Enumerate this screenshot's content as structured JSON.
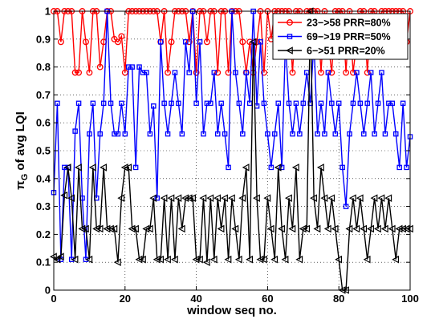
{
  "chart_data": {
    "type": "line",
    "title": "",
    "xlabel": "window seq no.",
    "ylabel_main": "π",
    "ylabel_sub": "G",
    "ylabel_rest": " of avg LQI",
    "xlim": [
      0,
      100
    ],
    "ylim": [
      0,
      1
    ],
    "xticks": [
      0,
      20,
      40,
      60,
      80,
      100
    ],
    "yticks": [
      0,
      0.1,
      0.2,
      0.3,
      0.4,
      0.5,
      0.6,
      0.7,
      0.8,
      0.9,
      1
    ],
    "xtick_labels": [
      "0",
      "20",
      "40",
      "60",
      "80",
      "100"
    ],
    "ytick_labels": [
      "0",
      "0.1",
      "0.2",
      "0.3",
      "0.4",
      "0.5",
      "0.6",
      "0.7",
      "0.8",
      "0.9",
      "1"
    ],
    "grid": true,
    "legend_position": "top-right",
    "x": [
      0,
      1,
      2,
      3,
      4,
      5,
      6,
      7,
      8,
      9,
      10,
      11,
      12,
      13,
      14,
      15,
      16,
      17,
      18,
      19,
      20,
      21,
      22,
      23,
      24,
      25,
      26,
      27,
      28,
      29,
      30,
      31,
      32,
      33,
      34,
      35,
      36,
      37,
      38,
      39,
      40,
      41,
      42,
      43,
      44,
      45,
      46,
      47,
      48,
      49,
      50,
      51,
      52,
      53,
      54,
      55,
      56,
      57,
      58,
      59,
      60,
      61,
      62,
      63,
      64,
      65,
      66,
      67,
      68,
      69,
      70,
      71,
      72,
      73,
      74,
      75,
      76,
      77,
      78,
      79,
      80,
      81,
      82,
      83,
      84,
      85,
      86,
      87,
      88,
      89,
      90,
      91,
      92,
      93,
      94,
      95,
      96,
      97,
      98,
      99,
      100
    ],
    "series": [
      {
        "name": "23−>58 PRR=80%",
        "color": "#ff0000",
        "marker": "circle",
        "values": [
          1,
          1,
          0.89,
          1,
          1,
          1,
          0.78,
          0.78,
          1,
          0.89,
          0.78,
          1,
          1,
          0.8,
          0.89,
          1,
          1,
          0.9,
          0.89,
          0.91,
          0.78,
          1,
          1,
          1,
          1,
          1,
          1,
          1,
          1,
          1,
          0.89,
          1,
          0.78,
          0.89,
          1,
          1,
          1,
          1,
          0.89,
          1,
          0.78,
          1,
          1,
          0.89,
          1,
          1,
          0.78,
          1,
          1,
          0.78,
          1,
          1,
          1,
          0.89,
          0.78,
          0.89,
          0.78,
          0.89,
          1,
          0.78,
          1,
          0.9,
          1,
          1,
          1,
          1,
          1,
          0.78,
          1,
          1,
          0.89,
          1,
          1,
          1,
          1,
          0.78,
          1,
          0.89,
          0.78,
          1,
          1,
          1,
          0.78,
          1,
          0.78,
          0.89,
          1,
          1,
          0.78,
          1,
          1,
          0.89,
          1,
          1,
          1,
          1,
          1,
          1,
          1,
          0.89,
          1
        ]
      },
      {
        "name": "69−>19 PRR=50%",
        "color": "#0000ff",
        "marker": "square",
        "values": [
          0.35,
          0.67,
          0.11,
          0.44,
          0.44,
          0.11,
          0.57,
          0.67,
          0.33,
          0.11,
          0.56,
          0.67,
          0.33,
          0.56,
          0.67,
          1,
          0.67,
          0.56,
          0.56,
          0.67,
          0.56,
          0.8,
          0.8,
          0.44,
          0.8,
          0.78,
          0.78,
          0.56,
          0.66,
          0.33,
          0.89,
          0.67,
          0.56,
          0.67,
          0.78,
          0.67,
          0.56,
          0.89,
          0.78,
          1,
          0.67,
          0.89,
          0.56,
          0.67,
          0.67,
          0.78,
          0.56,
          0.67,
          0.56,
          0.44,
          1,
          0.78,
          0.67,
          0.56,
          0.78,
          0.67,
          1,
          0.66,
          0.89,
          0.67,
          0.56,
          0.44,
          0.56,
          0.67,
          0.44,
          0.89,
          0.67,
          0.56,
          0.67,
          0.56,
          0.67,
          0.78,
          0.67,
          0.89,
          0.56,
          0.67,
          0.56,
          0.78,
          0.67,
          0.56,
          0.67,
          0.44,
          0.3,
          0.56,
          0.67,
          0.78,
          0.67,
          0.56,
          0.67,
          0.78,
          0.56,
          0.67,
          0.78,
          0.56,
          0.67,
          0.67,
          0.56,
          0.44,
          0.67,
          0.44,
          0.55
        ]
      },
      {
        "name": "6−>51 PRR=20%",
        "color": "#000000",
        "marker": "triangle-left",
        "values": [
          0.12,
          0.11,
          0.12,
          0.34,
          0.44,
          0.33,
          0.11,
          0.44,
          0.22,
          0.22,
          0.11,
          0.44,
          0.22,
          0.22,
          0.44,
          0.22,
          0.22,
          0.22,
          0.1,
          0.33,
          0.44,
          0.44,
          0.22,
          0.22,
          0.11,
          0.11,
          0.22,
          0.22,
          0.33,
          0.11,
          0.11,
          0.33,
          0.11,
          0.33,
          0.11,
          0.33,
          0.22,
          0.33,
          0.33,
          0.33,
          0.11,
          0.11,
          0.33,
          0.1,
          0.33,
          0.11,
          0.33,
          0.22,
          0.33,
          0.11,
          0.33,
          0.22,
          0.11,
          0.33,
          0.44,
          0.11,
          0.89,
          0.33,
          0.11,
          0.11,
          0.33,
          0.22,
          0.11,
          0.44,
          0.22,
          0.11,
          0.33,
          0.22,
          0.44,
          0.11,
          0.22,
          0.22,
          1,
          0.33,
          0.22,
          0.44,
          0.33,
          0.22,
          0.33,
          0.22,
          0.11,
          0,
          0,
          0.22,
          0.33,
          0.22,
          0.33,
          0.22,
          0.11,
          0.22,
          0.33,
          0.22,
          0.33,
          0.22,
          0.33,
          0.22,
          0.11,
          0.22,
          0.22,
          0.22,
          0.22
        ]
      }
    ]
  }
}
